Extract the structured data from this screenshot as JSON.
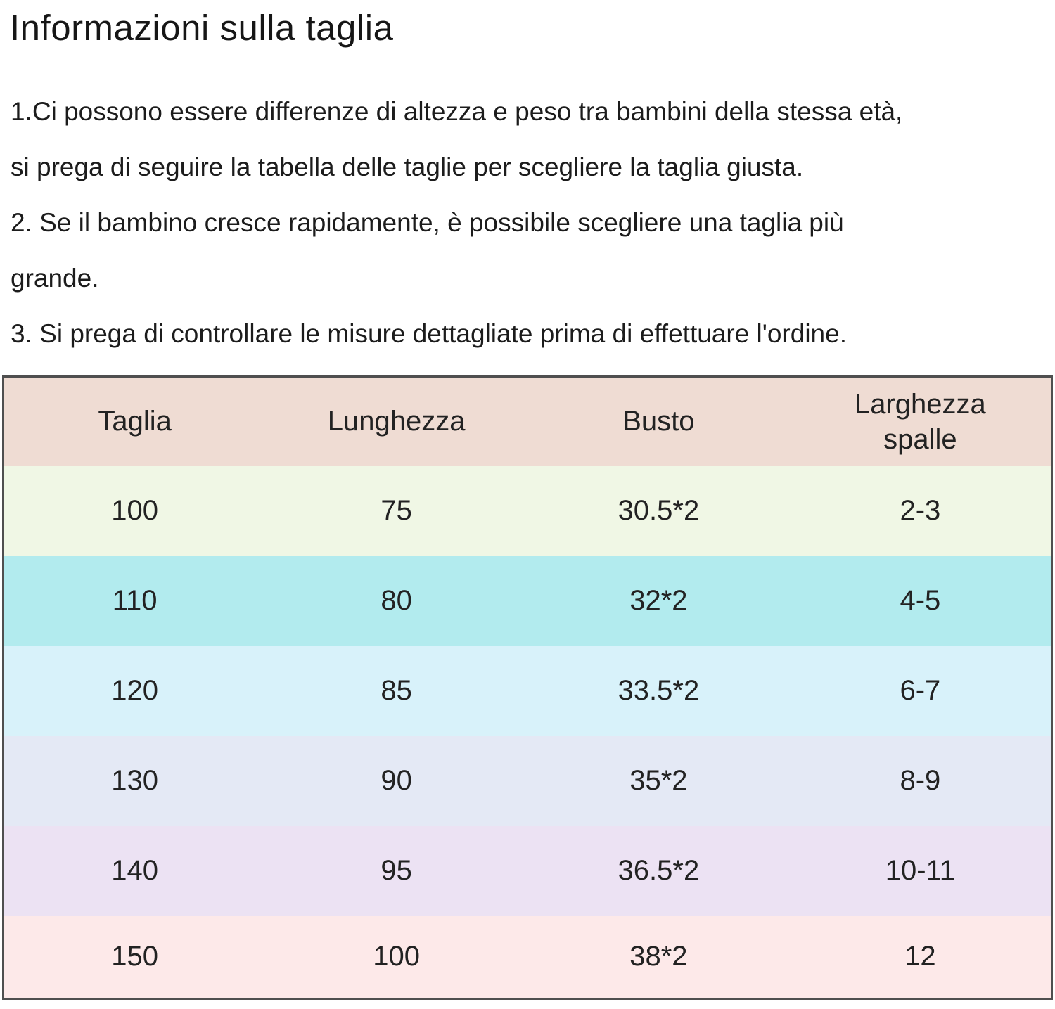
{
  "colors": {
    "page_bg": "#ffffff",
    "text": "#1c1c1c",
    "table_border": "#4f4f4f",
    "header_bg": "#efdcd3",
    "row_bgs": [
      "#f0f7e5",
      "#b2ebee",
      "#d8f2fa",
      "#e4e9f5",
      "#ece2f3",
      "#fde9e9"
    ]
  },
  "header": {
    "title": "Informazioni sulla taglia"
  },
  "notes": {
    "lines": [
      "1.Ci possono essere differenze di altezza e peso tra bambini della stessa età,",
      "si prega di seguire la tabella delle taglie per scegliere la taglia giusta.",
      "2. Se il bambino cresce rapidamente, è possibile scegliere una taglia più",
      "grande.",
      "3. Si prega di controllare le misure dettagliate prima di effettuare l'ordine."
    ]
  },
  "size_table": {
    "columns": [
      "Taglia",
      "Lunghezza",
      "Busto",
      "Larghezza spalle"
    ],
    "rows": [
      [
        "100",
        "75",
        "30.5*2",
        "2-3"
      ],
      [
        "110",
        "80",
        "32*2",
        "4-5"
      ],
      [
        "120",
        "85",
        "33.5*2",
        "6-7"
      ],
      [
        "130",
        "90",
        "35*2",
        "8-9"
      ],
      [
        "140",
        "95",
        "36.5*2",
        "10-11"
      ],
      [
        "150",
        "100",
        "38*2",
        "12"
      ]
    ]
  }
}
